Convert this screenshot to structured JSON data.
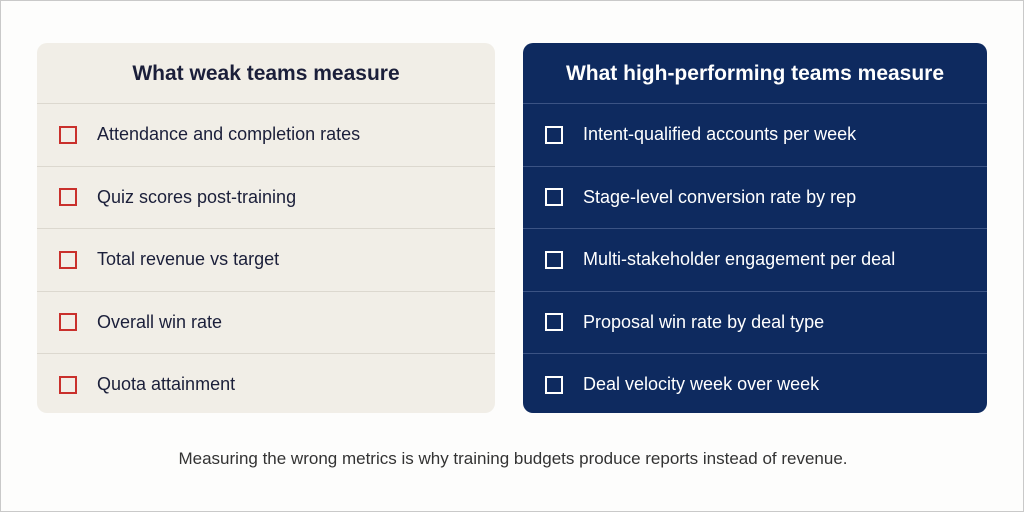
{
  "panels": [
    {
      "title": "What weak teams measure",
      "items": [
        "Attendance and completion rates",
        "Quiz scores post-training",
        "Total revenue vs target",
        "Overall win rate",
        "Quota attainment"
      ]
    },
    {
      "title": "What high-performing teams measure",
      "items": [
        "Intent-qualified accounts per week",
        "Stage-level conversion rate by rep",
        "Multi-stakeholder engagement per deal",
        "Proposal win rate by deal type",
        "Deal velocity week over week"
      ]
    }
  ],
  "footer": "Measuring the wrong metrics is why training budgets produce reports instead of revenue."
}
